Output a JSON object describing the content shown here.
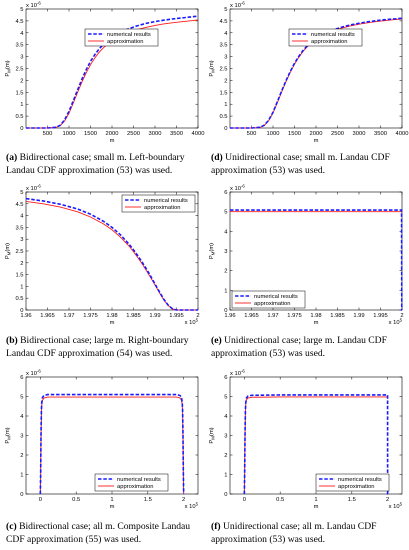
{
  "panels": [
    {
      "id": "a",
      "caption_label": "(a)",
      "caption_text": "Bidirectional case; small m. Left-boundary Landau CDF approximation (53) was used.",
      "chart_data": {
        "type": "line",
        "xlabel": "m",
        "ylabel": "P_M(m)",
        "xlim": [
          0,
          4000
        ],
        "ylim": [
          0,
          5
        ],
        "y_exponent": "x 10^-6",
        "x_exponent": "",
        "xticks": [
          500,
          1000,
          1500,
          2000,
          2500,
          3000,
          3500,
          4000
        ],
        "xtick_labels": [
          "500",
          "1000",
          "1500",
          "2000",
          "2500",
          "3000",
          "3500",
          "4000"
        ],
        "yticks": [
          0,
          0.5,
          1,
          1.5,
          2,
          2.5,
          3,
          3.5,
          4,
          4.5,
          5
        ],
        "ytick_labels": [
          "0",
          "0.5",
          "1",
          "1.5",
          "2",
          "2.5",
          "3",
          "3.5",
          "4",
          "4.5",
          "5"
        ],
        "legend_position": "top-left-inner",
        "series": [
          {
            "name": "numerical results",
            "style": "dashed",
            "color": "#1a1aff",
            "x": [
              0,
              500,
              700,
              800,
              900,
              1000,
              1100,
              1200,
              1300,
              1400,
              1500,
              1600,
              1700,
              1800,
              1900,
              2000,
              2200,
              2400,
              2600,
              2800,
              3000,
              3200,
              3400,
              3600,
              3800,
              4000
            ],
            "y": [
              0,
              0,
              0.03,
              0.12,
              0.35,
              0.7,
              1.15,
              1.6,
              2.05,
              2.45,
              2.8,
              3.08,
              3.32,
              3.52,
              3.68,
              3.82,
              4.03,
              4.18,
              4.3,
              4.4,
              4.47,
              4.53,
              4.58,
              4.62,
              4.66,
              4.7
            ]
          },
          {
            "name": "approximation",
            "style": "solid",
            "color": "#ff1a1a",
            "x": [
              0,
              500,
              700,
              800,
              900,
              1000,
              1100,
              1200,
              1300,
              1400,
              1500,
              1600,
              1700,
              1800,
              1900,
              2000,
              2200,
              2400,
              2600,
              2800,
              3000,
              3200,
              3400,
              3600,
              3800,
              4000
            ],
            "y": [
              0,
              0,
              0.03,
              0.1,
              0.3,
              0.62,
              1.05,
              1.5,
              1.93,
              2.32,
              2.66,
              2.94,
              3.18,
              3.37,
              3.53,
              3.67,
              3.87,
              4.02,
              4.14,
              4.23,
              4.31,
              4.37,
              4.42,
              4.46,
              4.5,
              4.54
            ]
          }
        ]
      }
    },
    {
      "id": "d",
      "caption_label": "(d)",
      "caption_text": "Unidirectional case; small m. Landau CDF approximation (53) was used.",
      "chart_data": {
        "type": "line",
        "xlabel": "m",
        "ylabel": "P_M(m)",
        "xlim": [
          0,
          4000
        ],
        "ylim": [
          0,
          5
        ],
        "y_exponent": "x 10^-6",
        "x_exponent": "",
        "xticks": [
          500,
          1000,
          1500,
          2000,
          2500,
          3000,
          3500,
          4000
        ],
        "xtick_labels": [
          "500",
          "1000",
          "1500",
          "2000",
          "2500",
          "3000",
          "3500",
          "4000"
        ],
        "yticks": [
          0,
          0.5,
          1,
          1.5,
          2,
          2.5,
          3,
          3.5,
          4,
          4.5,
          5
        ],
        "ytick_labels": [
          "0",
          "0.5",
          "1",
          "1.5",
          "2",
          "2.5",
          "3",
          "3.5",
          "4",
          "4.5",
          "5"
        ],
        "legend_position": "top-left-inner",
        "series": [
          {
            "name": "numerical results",
            "style": "dashed",
            "color": "#1a1aff",
            "x": [
              0,
              500,
              700,
              800,
              900,
              1000,
              1100,
              1200,
              1300,
              1400,
              1500,
              1600,
              1700,
              1800,
              1900,
              2000,
              2200,
              2400,
              2600,
              2800,
              3000,
              3200,
              3400,
              3600,
              3800,
              4000
            ],
            "y": [
              0,
              0,
              0.03,
              0.12,
              0.33,
              0.66,
              1.1,
              1.55,
              1.98,
              2.37,
              2.72,
              3.01,
              3.26,
              3.46,
              3.62,
              3.76,
              3.97,
              4.12,
              4.24,
              4.33,
              4.4,
              4.46,
              4.51,
              4.55,
              4.58,
              4.61
            ]
          },
          {
            "name": "approximation",
            "style": "solid",
            "color": "#ff1a1a",
            "x": [
              0,
              500,
              700,
              800,
              900,
              1000,
              1100,
              1200,
              1300,
              1400,
              1500,
              1600,
              1700,
              1800,
              1900,
              2000,
              2200,
              2400,
              2600,
              2800,
              3000,
              3200,
              3400,
              3600,
              3800,
              4000
            ],
            "y": [
              0,
              0,
              0.03,
              0.11,
              0.31,
              0.63,
              1.06,
              1.51,
              1.94,
              2.33,
              2.68,
              2.97,
              3.22,
              3.42,
              3.58,
              3.72,
              3.93,
              4.08,
              4.2,
              4.29,
              4.36,
              4.42,
              4.47,
              4.51,
              4.55,
              4.58
            ]
          }
        ]
      }
    },
    {
      "id": "b",
      "caption_label": "(b)",
      "caption_text": "Bidirectional case; large m. Right-boundary Landau CDF approximation (54) was used.",
      "chart_data": {
        "type": "line",
        "xlabel": "m",
        "ylabel": "P_M(m)",
        "xlim": [
          1.96,
          2.0
        ],
        "ylim": [
          0,
          5
        ],
        "y_exponent": "x 10^-6",
        "x_exponent": "x 10^5",
        "xticks": [
          1.96,
          1.965,
          1.97,
          1.975,
          1.98,
          1.985,
          1.99,
          1.995,
          2.0
        ],
        "xtick_labels": [
          "1.96",
          "1.965",
          "1.97",
          "1.975",
          "1.98",
          "1.985",
          "1.99",
          "1.995",
          "2"
        ],
        "yticks": [
          0,
          0.5,
          1,
          1.5,
          2,
          2.5,
          3,
          3.5,
          4,
          4.5,
          5
        ],
        "ytick_labels": [
          "0",
          "0.5",
          "1",
          "1.5",
          "2",
          "2.5",
          "3",
          "3.5",
          "4",
          "4.5",
          "5"
        ],
        "legend_position": "top-right",
        "series": [
          {
            "name": "numerical results",
            "style": "dashed",
            "color": "#1a1aff",
            "x": [
              1.96,
              1.964,
              1.968,
              1.972,
              1.975,
              1.978,
              1.98,
              1.982,
              1.984,
              1.985,
              1.986,
              1.987,
              1.988,
              1.989,
              1.99,
              1.991,
              1.992,
              1.993,
              1.994,
              1.995,
              2.0
            ],
            "y": [
              4.72,
              4.62,
              4.48,
              4.28,
              4.06,
              3.76,
              3.5,
              3.18,
              2.78,
              2.55,
              2.3,
              2.03,
              1.74,
              1.43,
              1.1,
              0.78,
              0.47,
              0.22,
              0.06,
              0,
              0
            ]
          },
          {
            "name": "approximation",
            "style": "solid",
            "color": "#ff1a1a",
            "x": [
              1.96,
              1.964,
              1.968,
              1.972,
              1.975,
              1.978,
              1.98,
              1.982,
              1.984,
              1.985,
              1.986,
              1.987,
              1.988,
              1.989,
              1.99,
              1.991,
              1.992,
              1.993,
              1.994,
              1.995,
              2.0
            ],
            "y": [
              4.6,
              4.5,
              4.36,
              4.16,
              3.94,
              3.65,
              3.4,
              3.08,
              2.7,
              2.47,
              2.22,
              1.96,
              1.67,
              1.37,
              1.06,
              0.74,
              0.44,
              0.2,
              0.05,
              0,
              0
            ]
          }
        ]
      }
    },
    {
      "id": "e",
      "caption_label": "(e)",
      "caption_text": "Unidirectional case; large m. Landau CDF approximation (53) was used.",
      "chart_data": {
        "type": "line",
        "xlabel": "m",
        "ylabel": "P_M(m)",
        "xlim": [
          1.96,
          2.0
        ],
        "ylim": [
          0,
          6
        ],
        "y_exponent": "x 10^-6",
        "x_exponent": "x 10^5",
        "xticks": [
          1.96,
          1.965,
          1.97,
          1.975,
          1.98,
          1.985,
          1.99,
          1.995,
          2.0
        ],
        "xtick_labels": [
          "1.96",
          "1.965",
          "1.97",
          "1.975",
          "1.98",
          "1.985",
          "1.99",
          "1.995",
          "2"
        ],
        "yticks": [
          0,
          1,
          2,
          3,
          4,
          5,
          6
        ],
        "ytick_labels": [
          "0",
          "1",
          "2",
          "3",
          "4",
          "5",
          "6"
        ],
        "legend_position": "bottom-left",
        "series": [
          {
            "name": "numerical results",
            "style": "dashed",
            "color": "#1a1aff",
            "x": [
              1.96,
              1.9999,
              1.99995,
              2.0
            ],
            "y": [
              5.08,
              5.08,
              0,
              0
            ]
          },
          {
            "name": "approximation",
            "style": "solid",
            "color": "#ff1a1a",
            "x": [
              1.96,
              1.9999
            ],
            "y": [
              5.0,
              5.0
            ]
          }
        ]
      }
    },
    {
      "id": "c",
      "caption_label": "(c)",
      "caption_text": "Bidirectional case; all m. Composite Landau CDF approximation (55) was used.",
      "chart_data": {
        "type": "line",
        "xlabel": "m",
        "ylabel": "P_M(m)",
        "xlim": [
          -0.2,
          2.2
        ],
        "ylim": [
          0,
          6
        ],
        "y_exponent": "x 10^-6",
        "x_exponent": "x 10^5",
        "xticks": [
          0,
          0.5,
          1,
          1.5,
          2
        ],
        "xtick_labels": [
          "0",
          "0.5",
          "1",
          "1.5",
          "2"
        ],
        "yticks": [
          0,
          1,
          2,
          3,
          4,
          5,
          6
        ],
        "ytick_labels": [
          "0",
          "1",
          "2",
          "3",
          "4",
          "5",
          "6"
        ],
        "legend_position": "bottom-center",
        "series": [
          {
            "name": "numerical results",
            "style": "dashed",
            "color": "#1a1aff",
            "x": [
              0,
              0.005,
              0.01,
              0.015,
              0.02,
              0.03,
              0.05,
              0.1,
              0.5,
              1.0,
              1.5,
              1.9,
              1.95,
              1.97,
              1.98,
              1.985,
              1.99,
              1.995,
              2.0
            ],
            "y": [
              0,
              1.2,
              3.2,
              4.3,
              4.7,
              4.95,
              5.05,
              5.1,
              5.1,
              5.1,
              5.1,
              5.1,
              5.05,
              4.95,
              4.7,
              4.3,
              3.2,
              1.2,
              0
            ]
          },
          {
            "name": "approximation",
            "style": "solid",
            "color": "#ff1a1a",
            "x": [
              0,
              0.005,
              0.01,
              0.015,
              0.02,
              0.03,
              0.05,
              0.1,
              0.5,
              1.0,
              1.5,
              1.9,
              1.95,
              1.97,
              1.98,
              1.985,
              1.99,
              1.995,
              2.0
            ],
            "y": [
              0,
              1.1,
              3.0,
              4.15,
              4.55,
              4.8,
              4.92,
              4.97,
              4.97,
              4.97,
              4.97,
              4.97,
              4.92,
              4.8,
              4.55,
              4.15,
              3.0,
              1.1,
              0
            ]
          }
        ]
      }
    },
    {
      "id": "f",
      "caption_label": "(f)",
      "caption_text": "Unidirectional case; all m. Landau CDF approximation (53) was used.",
      "chart_data": {
        "type": "line",
        "xlabel": "m",
        "ylabel": "P_M(m)",
        "xlim": [
          -0.2,
          2.2
        ],
        "ylim": [
          0,
          6
        ],
        "y_exponent": "x 10^-6",
        "x_exponent": "x 10^5",
        "xticks": [
          0,
          0.5,
          1,
          1.5,
          2
        ],
        "xtick_labels": [
          "0",
          "0.5",
          "1",
          "1.5",
          "2"
        ],
        "yticks": [
          0,
          1,
          2,
          3,
          4,
          5,
          6
        ],
        "ytick_labels": [
          "0",
          "1",
          "2",
          "3",
          "4",
          "5",
          "6"
        ],
        "legend_position": "bottom-right",
        "series": [
          {
            "name": "numerical results",
            "style": "dashed",
            "color": "#1a1aff",
            "x": [
              0,
              0.005,
              0.01,
              0.015,
              0.02,
              0.03,
              0.05,
              0.1,
              0.5,
              1.0,
              1.5,
              1.999,
              1.9995,
              2.0
            ],
            "y": [
              0,
              1.2,
              3.2,
              4.3,
              4.7,
              4.93,
              5.02,
              5.06,
              5.08,
              5.08,
              5.08,
              5.08,
              0,
              0
            ]
          },
          {
            "name": "approximation",
            "style": "solid",
            "color": "#ff1a1a",
            "x": [
              0,
              0.005,
              0.01,
              0.015,
              0.02,
              0.03,
              0.05,
              0.1,
              0.5,
              1.0,
              1.5,
              1.999
            ],
            "y": [
              0,
              1.15,
              3.1,
              4.2,
              4.6,
              4.83,
              4.92,
              4.96,
              4.98,
              4.98,
              4.98,
              4.98
            ]
          }
        ]
      }
    }
  ],
  "colors": {
    "numerical": "#1a1aff",
    "approximation": "#ff1a1a"
  }
}
